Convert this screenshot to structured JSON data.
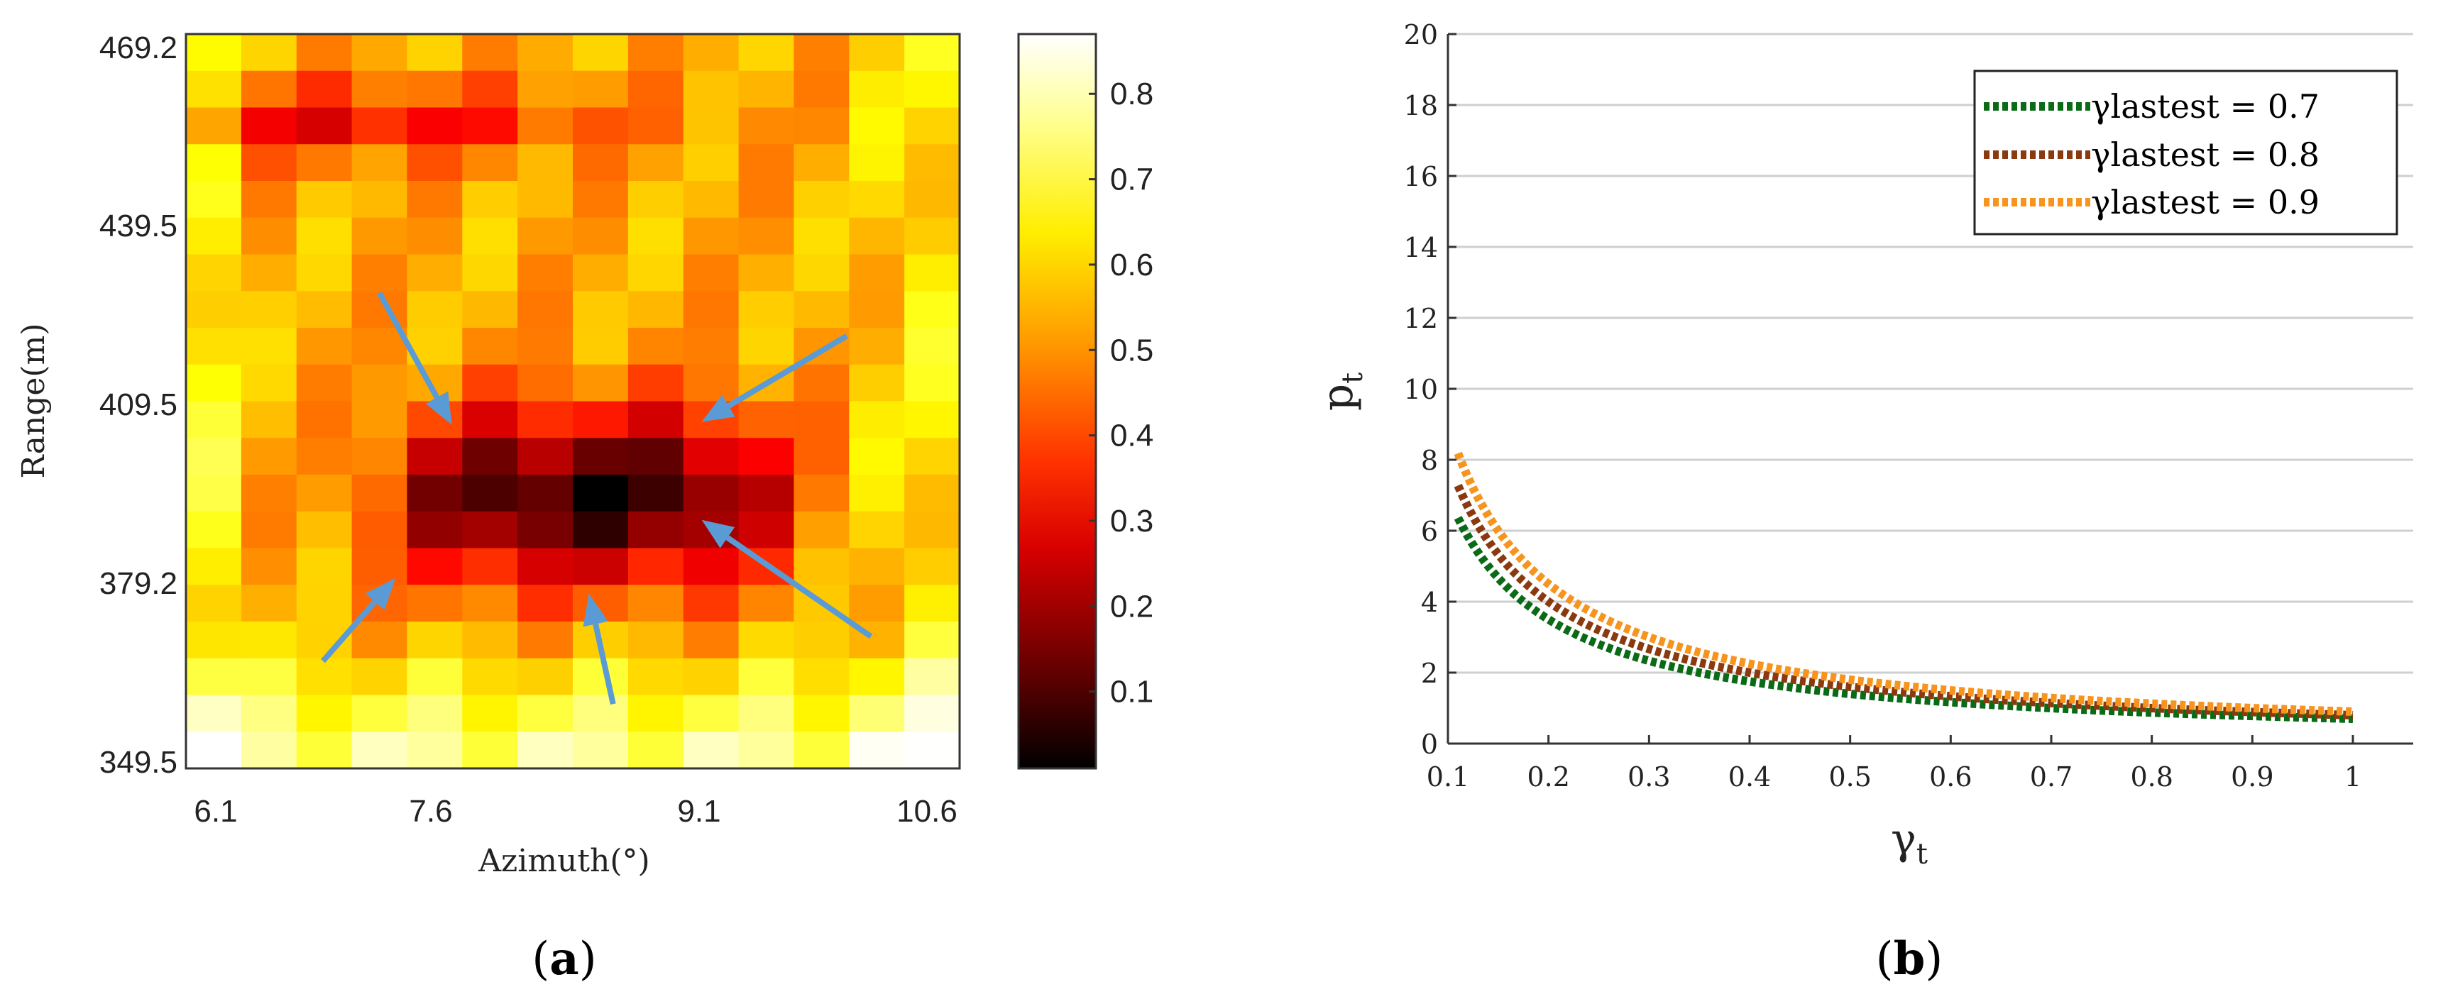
{
  "chart_data": [
    {
      "type": "heatmap",
      "panel_caption": "(a)",
      "caption_letter": "a",
      "xlabel": "Azimuth(°)",
      "ylabel": "Range(m)",
      "x_ticks": [
        "6.1",
        "7.6",
        "9.1",
        "10.6"
      ],
      "y_ticks": [
        "469.2",
        "439.5",
        "409.5",
        "379.2",
        "349.5"
      ],
      "xlim": [
        5.9,
        10.7
      ],
      "ylim": [
        349.5,
        469.2
      ],
      "colorbar": {
        "ticks": [
          "0.1",
          "0.2",
          "0.3",
          "0.4",
          "0.5",
          "0.6",
          "0.7",
          "0.8"
        ],
        "range": [
          0.01,
          0.87
        ],
        "colormap": "hot"
      },
      "annotations": [
        {
          "type": "arrow",
          "from": [
            7.1,
            427.0
          ],
          "to": [
            7.55,
            405.5
          ]
        },
        {
          "type": "arrow",
          "from": [
            6.75,
            367.0
          ],
          "to": [
            7.2,
            380.5
          ]
        },
        {
          "type": "arrow",
          "from": [
            8.55,
            360.0
          ],
          "to": [
            8.4,
            378.0
          ]
        },
        {
          "type": "arrow",
          "from": [
            10.0,
            420.0
          ],
          "to": [
            9.1,
            406.0
          ]
        },
        {
          "type": "arrow",
          "from": [
            10.15,
            371.0
          ],
          "to": [
            9.1,
            390.0
          ]
        }
      ]
    },
    {
      "type": "line",
      "panel_caption": "(b)",
      "caption_letter": "b",
      "xlabel": "γ",
      "xlabel_sub": "t",
      "ylabel": "p",
      "ylabel_sub": "t",
      "x_ticks": [
        "0.1",
        "0.2",
        "0.3",
        "0.4",
        "0.5",
        "0.6",
        "0.7",
        "0.8",
        "0.9",
        "1"
      ],
      "y_ticks": [
        "0",
        "2",
        "4",
        "6",
        "8",
        "10",
        "12",
        "14",
        "16",
        "18",
        "20"
      ],
      "xlim": [
        0.1,
        1.06
      ],
      "ylim": [
        0,
        20
      ],
      "grid": "horizontal",
      "legend_position": "top-right",
      "series": [
        {
          "name": "γlastest = 0.7",
          "color": "#0a6b17",
          "x_start": 0.11,
          "x_end": 1.0,
          "function": "0.7/x"
        },
        {
          "name": "γlastest = 0.8",
          "color": "#8b3a10",
          "x_start": 0.11,
          "x_end": 1.0,
          "function": "0.8/x"
        },
        {
          "name": "γlastest = 0.9",
          "color": "#f7941d",
          "x_start": 0.11,
          "x_end": 1.0,
          "function": "0.9/x"
        }
      ]
    }
  ]
}
